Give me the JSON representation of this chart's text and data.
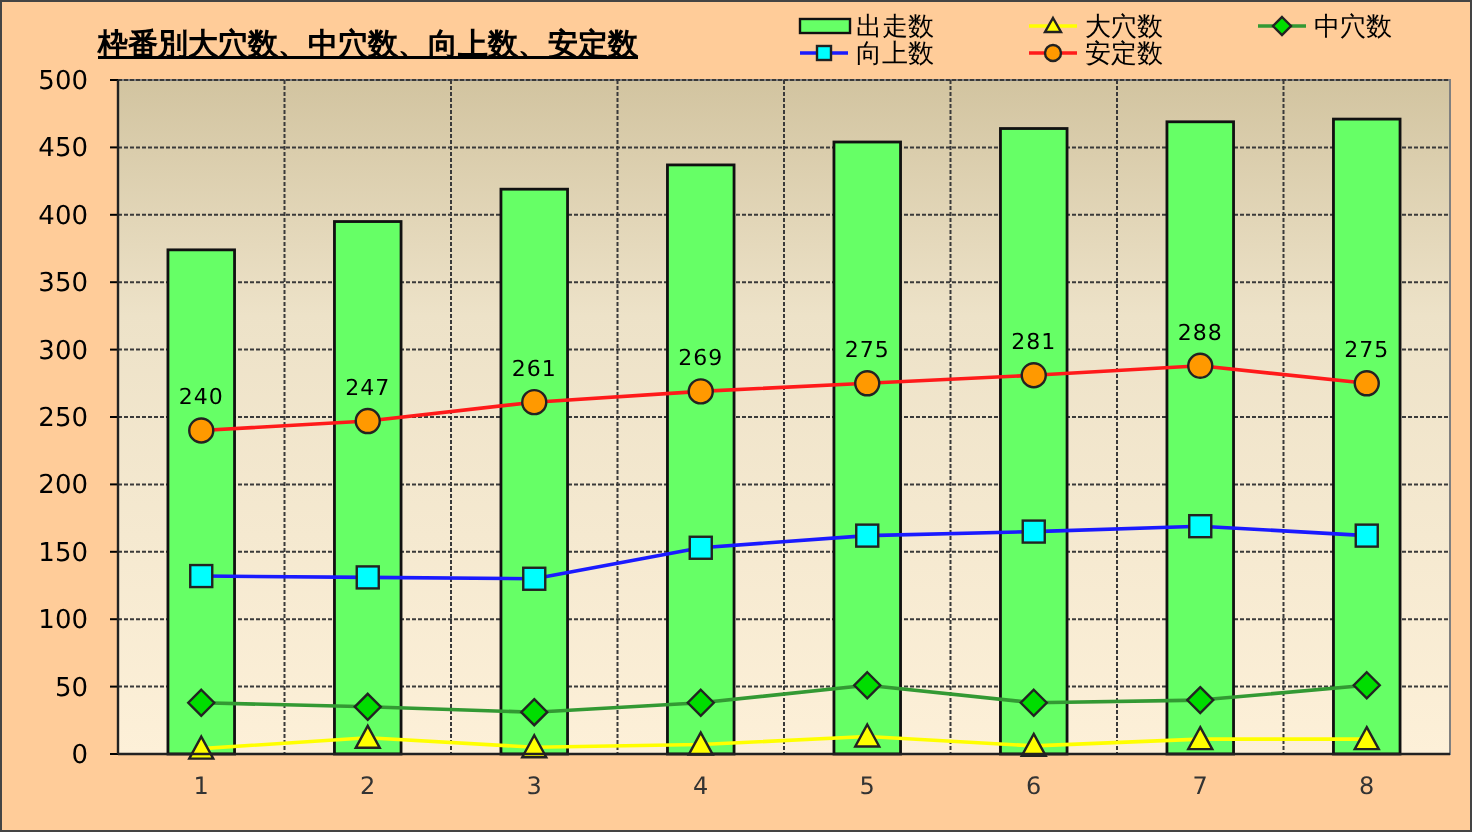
{
  "chart_data": {
    "type": "bar",
    "title": "枠番別大穴数、中穴数、向上数、安定数",
    "categories": [
      "1",
      "2",
      "3",
      "4",
      "5",
      "6",
      "7",
      "8"
    ],
    "series": [
      {
        "name": "出走数",
        "color": "#66ff66",
        "values": [
          374,
          395,
          419,
          437,
          454,
          464,
          469,
          471
        ]
      },
      {
        "name": "大穴数",
        "type": "line",
        "marker": "triangle",
        "color": "#ffff00",
        "colors": [
          "#ffff00",
          "#ffff00",
          "#ffff00",
          "#ffff00",
          "#ffff00",
          "#ffff00",
          "#ffff00",
          "#ffff00"
        ],
        "values": [
          4,
          12,
          5,
          7,
          13,
          6,
          11,
          11
        ]
      },
      {
        "name": "中穴数",
        "type": "line",
        "marker": "diamond",
        "color": "#339933",
        "colors": [
          "#00dd00",
          "#00dd00",
          "#00dd00",
          "#00dd00",
          "#00dd00",
          "#00dd00",
          "#00dd00",
          "#00dd00"
        ],
        "values": [
          38,
          35,
          31,
          38,
          51,
          38,
          40,
          51
        ]
      },
      {
        "name": "向上数",
        "type": "line",
        "marker": "square",
        "color": "#1a1aff",
        "colors": [
          "#00ffff",
          "#00ffff",
          "#00ffff",
          "#00ffff",
          "#00ffff",
          "#00ffff",
          "#00ffff",
          "#00ffff"
        ],
        "values": [
          132,
          131,
          130,
          153,
          162,
          165,
          169,
          162
        ]
      },
      {
        "name": "安定数",
        "type": "line",
        "marker": "circle",
        "color": "#ff1a1a",
        "colors": [
          "#ff9900",
          "#ff9900",
          "#ff9900",
          "#ff9900",
          "#ff9900",
          "#ff9900",
          "#ff9900",
          "#ff9900"
        ],
        "data_labels": true,
        "values": [
          240,
          247,
          261,
          269,
          275,
          281,
          288,
          275
        ]
      }
    ],
    "ylim": [
      0,
      500
    ],
    "yticks": [
      0,
      50,
      100,
      150,
      200,
      250,
      300,
      350,
      400,
      450,
      500
    ],
    "grid": true,
    "legend": "top right"
  }
}
